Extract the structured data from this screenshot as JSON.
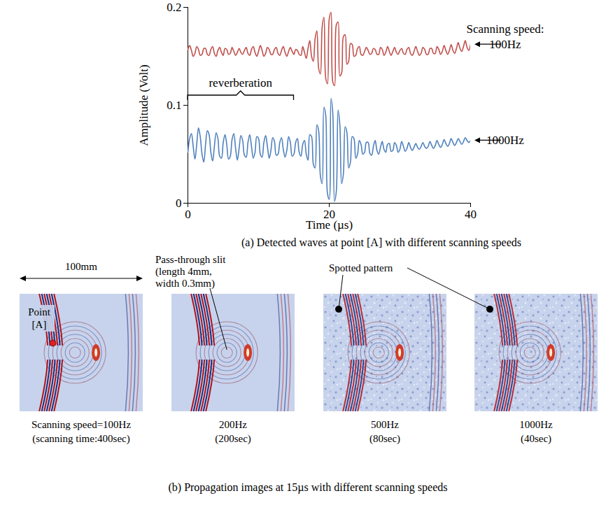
{
  "chart_data": {
    "type": "line",
    "x_label": "Time (µs)",
    "y_label": "Amplitude (Volt)",
    "caption": "(a) Detected waves at point [A] with different scanning speeds",
    "series_title": "Scanning speed:",
    "xlim": [
      0,
      40
    ],
    "ylim": [
      0,
      0.2
    ],
    "xticks": [
      0,
      20,
      40
    ],
    "yticks": [
      0,
      0.1,
      0.2
    ],
    "annotations": [
      {
        "text": "reverberation",
        "x_start": 0,
        "x_end": 15,
        "y": 0.11
      }
    ],
    "x": [
      0,
      0.25,
      0.5,
      0.75,
      1,
      1.25,
      1.5,
      1.75,
      2,
      2.25,
      2.5,
      2.75,
      3,
      3.25,
      3.5,
      3.75,
      4,
      4.25,
      4.5,
      4.75,
      5,
      5.25,
      5.5,
      5.75,
      6,
      6.25,
      6.5,
      6.75,
      7,
      7.25,
      7.5,
      7.75,
      8,
      8.25,
      8.5,
      8.75,
      9,
      9.25,
      9.5,
      9.75,
      10,
      10.25,
      10.5,
      10.75,
      11,
      11.25,
      11.5,
      11.75,
      12,
      12.25,
      12.5,
      12.75,
      13,
      13.25,
      13.5,
      13.75,
      14,
      14.25,
      14.5,
      14.75,
      15,
      15.25,
      15.5,
      15.75,
      16,
      16.25,
      16.5,
      16.75,
      17,
      17.25,
      17.5,
      17.75,
      18,
      18.25,
      18.5,
      18.75,
      19,
      19.25,
      19.5,
      19.75,
      20,
      20.25,
      20.5,
      20.75,
      21,
      21.25,
      21.5,
      21.75,
      22,
      22.25,
      22.5,
      22.75,
      23,
      23.25,
      23.5,
      23.75,
      24,
      24.25,
      24.5,
      24.75,
      25,
      25.25,
      25.5,
      25.75,
      26,
      26.25,
      26.5,
      26.75,
      27,
      27.25,
      27.5,
      27.75,
      28,
      28.25,
      28.5,
      28.75,
      29,
      29.25,
      29.5,
      29.75,
      30,
      30.25,
      30.5,
      30.75,
      31,
      31.25,
      31.5,
      31.75,
      32,
      32.25,
      32.5,
      32.75,
      33,
      33.25,
      33.5,
      33.75,
      34,
      34.25,
      34.5,
      34.75,
      35,
      35.25,
      35.5,
      35.75,
      36,
      36.25,
      36.5,
      36.75,
      37,
      37.25,
      37.5,
      37.75,
      38,
      38.25,
      38.5,
      38.75,
      39,
      39.25,
      39.5,
      39.75,
      40
    ],
    "series": [
      {
        "name": "100Hz",
        "color": "#c0504d",
        "values": [
          0.157,
          0.161,
          0.156,
          0.15,
          0.153,
          0.16,
          0.157,
          0.151,
          0.152,
          0.158,
          0.158,
          0.152,
          0.151,
          0.157,
          0.16,
          0.153,
          0.15,
          0.156,
          0.159,
          0.154,
          0.151,
          0.158,
          0.157,
          0.152,
          0.153,
          0.159,
          0.155,
          0.151,
          0.154,
          0.158,
          0.154,
          0.152,
          0.156,
          0.159,
          0.153,
          0.151,
          0.157,
          0.16,
          0.154,
          0.15,
          0.155,
          0.161,
          0.156,
          0.15,
          0.153,
          0.159,
          0.157,
          0.152,
          0.152,
          0.157,
          0.159,
          0.153,
          0.151,
          0.156,
          0.16,
          0.154,
          0.15,
          0.155,
          0.159,
          0.155,
          0.152,
          0.157,
          0.156,
          0.152,
          0.151,
          0.16,
          0.154,
          0.148,
          0.158,
          0.166,
          0.15,
          0.145,
          0.168,
          0.176,
          0.138,
          0.132,
          0.18,
          0.19,
          0.128,
          0.122,
          0.188,
          0.195,
          0.124,
          0.12,
          0.182,
          0.185,
          0.13,
          0.133,
          0.17,
          0.172,
          0.142,
          0.145,
          0.163,
          0.162,
          0.15,
          0.151,
          0.158,
          0.16,
          0.152,
          0.151,
          0.155,
          0.159,
          0.156,
          0.152,
          0.153,
          0.158,
          0.157,
          0.152,
          0.152,
          0.159,
          0.157,
          0.151,
          0.154,
          0.16,
          0.155,
          0.151,
          0.155,
          0.159,
          0.154,
          0.152,
          0.156,
          0.158,
          0.153,
          0.152,
          0.157,
          0.159,
          0.153,
          0.151,
          0.155,
          0.16,
          0.155,
          0.151,
          0.153,
          0.159,
          0.157,
          0.152,
          0.152,
          0.158,
          0.158,
          0.153,
          0.153,
          0.16,
          0.157,
          0.152,
          0.155,
          0.161,
          0.156,
          0.152,
          0.156,
          0.162,
          0.156,
          0.153,
          0.158,
          0.164,
          0.158,
          0.155,
          0.16,
          0.166,
          0.159,
          0.156,
          0.162
        ]
      },
      {
        "name": "1000Hz",
        "color": "#4f81bd",
        "values": [
          0.052,
          0.066,
          0.071,
          0.058,
          0.045,
          0.06,
          0.077,
          0.068,
          0.05,
          0.042,
          0.06,
          0.074,
          0.07,
          0.052,
          0.043,
          0.058,
          0.072,
          0.066,
          0.048,
          0.046,
          0.062,
          0.07,
          0.06,
          0.045,
          0.048,
          0.065,
          0.071,
          0.056,
          0.044,
          0.056,
          0.069,
          0.064,
          0.049,
          0.047,
          0.062,
          0.07,
          0.058,
          0.046,
          0.052,
          0.068,
          0.066,
          0.05,
          0.047,
          0.062,
          0.069,
          0.058,
          0.046,
          0.054,
          0.067,
          0.063,
          0.049,
          0.05,
          0.062,
          0.067,
          0.055,
          0.047,
          0.054,
          0.068,
          0.062,
          0.048,
          0.05,
          0.062,
          0.066,
          0.052,
          0.048,
          0.06,
          0.064,
          0.05,
          0.044,
          0.07,
          0.068,
          0.04,
          0.036,
          0.08,
          0.074,
          0.028,
          0.02,
          0.098,
          0.09,
          0.01,
          0.004,
          0.107,
          0.092,
          0.002,
          0.012,
          0.095,
          0.08,
          0.02,
          0.03,
          0.078,
          0.072,
          0.036,
          0.042,
          0.068,
          0.066,
          0.046,
          0.05,
          0.064,
          0.06,
          0.05,
          0.052,
          0.062,
          0.062,
          0.051,
          0.049,
          0.058,
          0.064,
          0.054,
          0.05,
          0.057,
          0.063,
          0.055,
          0.052,
          0.06,
          0.061,
          0.053,
          0.054,
          0.062,
          0.059,
          0.052,
          0.055,
          0.063,
          0.058,
          0.053,
          0.056,
          0.062,
          0.057,
          0.054,
          0.057,
          0.061,
          0.057,
          0.055,
          0.058,
          0.062,
          0.058,
          0.056,
          0.058,
          0.063,
          0.059,
          0.056,
          0.059,
          0.064,
          0.06,
          0.057,
          0.06,
          0.065,
          0.061,
          0.058,
          0.061,
          0.066,
          0.062,
          0.059,
          0.062,
          0.066,
          0.063,
          0.06,
          0.063,
          0.067,
          0.064,
          0.062,
          0.064
        ]
      }
    ]
  },
  "panel_b": {
    "caption": "(b) Propagation images at 15µs with different scanning speeds",
    "scale_bar": "100mm",
    "slit_label": [
      "Pass-through slit",
      "(length 4mm,",
      "width 0.3mm)"
    ],
    "point_label": [
      "Point",
      "[A]"
    ],
    "spotted_label": "Spotted pattern",
    "images": [
      {
        "lines": [
          "Scanning speed=100Hz",
          "(scanning time:400sec)"
        ],
        "spotted": false
      },
      {
        "lines": [
          "200Hz",
          "(200sec)"
        ],
        "spotted": false
      },
      {
        "lines": [
          "500Hz",
          "(80sec)"
        ],
        "spotted": true
      },
      {
        "lines": [
          "1000Hz",
          "(40sec)"
        ],
        "spotted": true
      }
    ]
  }
}
